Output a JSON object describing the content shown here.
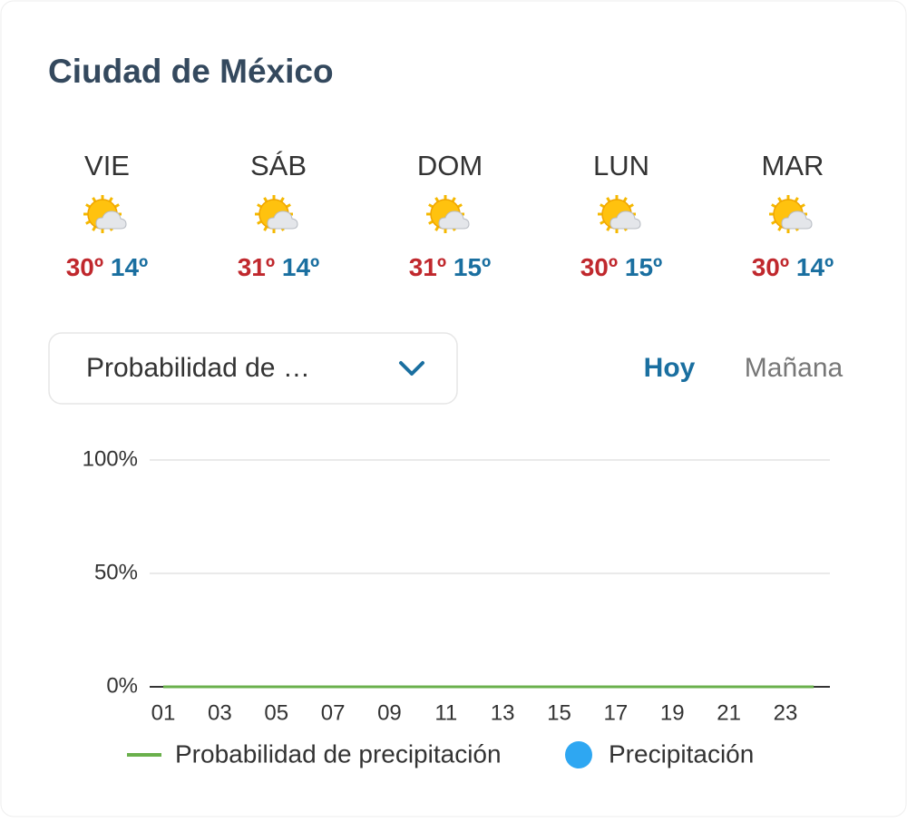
{
  "header": {
    "title": "Ciudad de México"
  },
  "days": [
    {
      "name": "VIE",
      "high": "30º",
      "low": "14º"
    },
    {
      "name": "SÁB",
      "high": "31º",
      "low": "14º"
    },
    {
      "name": "DOM",
      "high": "31º",
      "low": "15º"
    },
    {
      "name": "LUN",
      "high": "30º",
      "low": "15º"
    },
    {
      "name": "MAR",
      "high": "30º",
      "low": "14º"
    }
  ],
  "selector": {
    "label": "Probabilidad de …"
  },
  "tabs": [
    "Hoy",
    "Mañana"
  ],
  "chart_data": {
    "type": "line",
    "categories": [
      "01",
      null,
      "03",
      null,
      "05",
      null,
      "07",
      null,
      "09",
      null,
      "11",
      null,
      "13",
      null,
      "15",
      null,
      "17",
      null,
      "19",
      null,
      "21",
      null,
      "23",
      null
    ],
    "series": [
      {
        "name": "Probabilidad de precipitación",
        "color": "#6ab04c",
        "values": [
          0,
          0,
          0,
          0,
          0,
          0,
          0,
          0,
          0,
          0,
          0,
          0,
          0,
          0,
          0,
          0,
          0,
          0,
          0,
          0,
          0,
          0,
          0,
          0
        ]
      },
      {
        "name": "Precipitación",
        "color": "#2ea7f2",
        "values": [
          0,
          0,
          0,
          0,
          0,
          0,
          0,
          0,
          0,
          0,
          0,
          0,
          0,
          0,
          0,
          0,
          0,
          0,
          0,
          0,
          0,
          0,
          0,
          0
        ]
      }
    ],
    "ylim": [
      0,
      100
    ],
    "yticks": [
      {
        "value": 0,
        "label": "0%"
      },
      {
        "value": 50,
        "label": "50%"
      },
      {
        "value": 100,
        "label": "100%"
      }
    ],
    "grid": true
  }
}
